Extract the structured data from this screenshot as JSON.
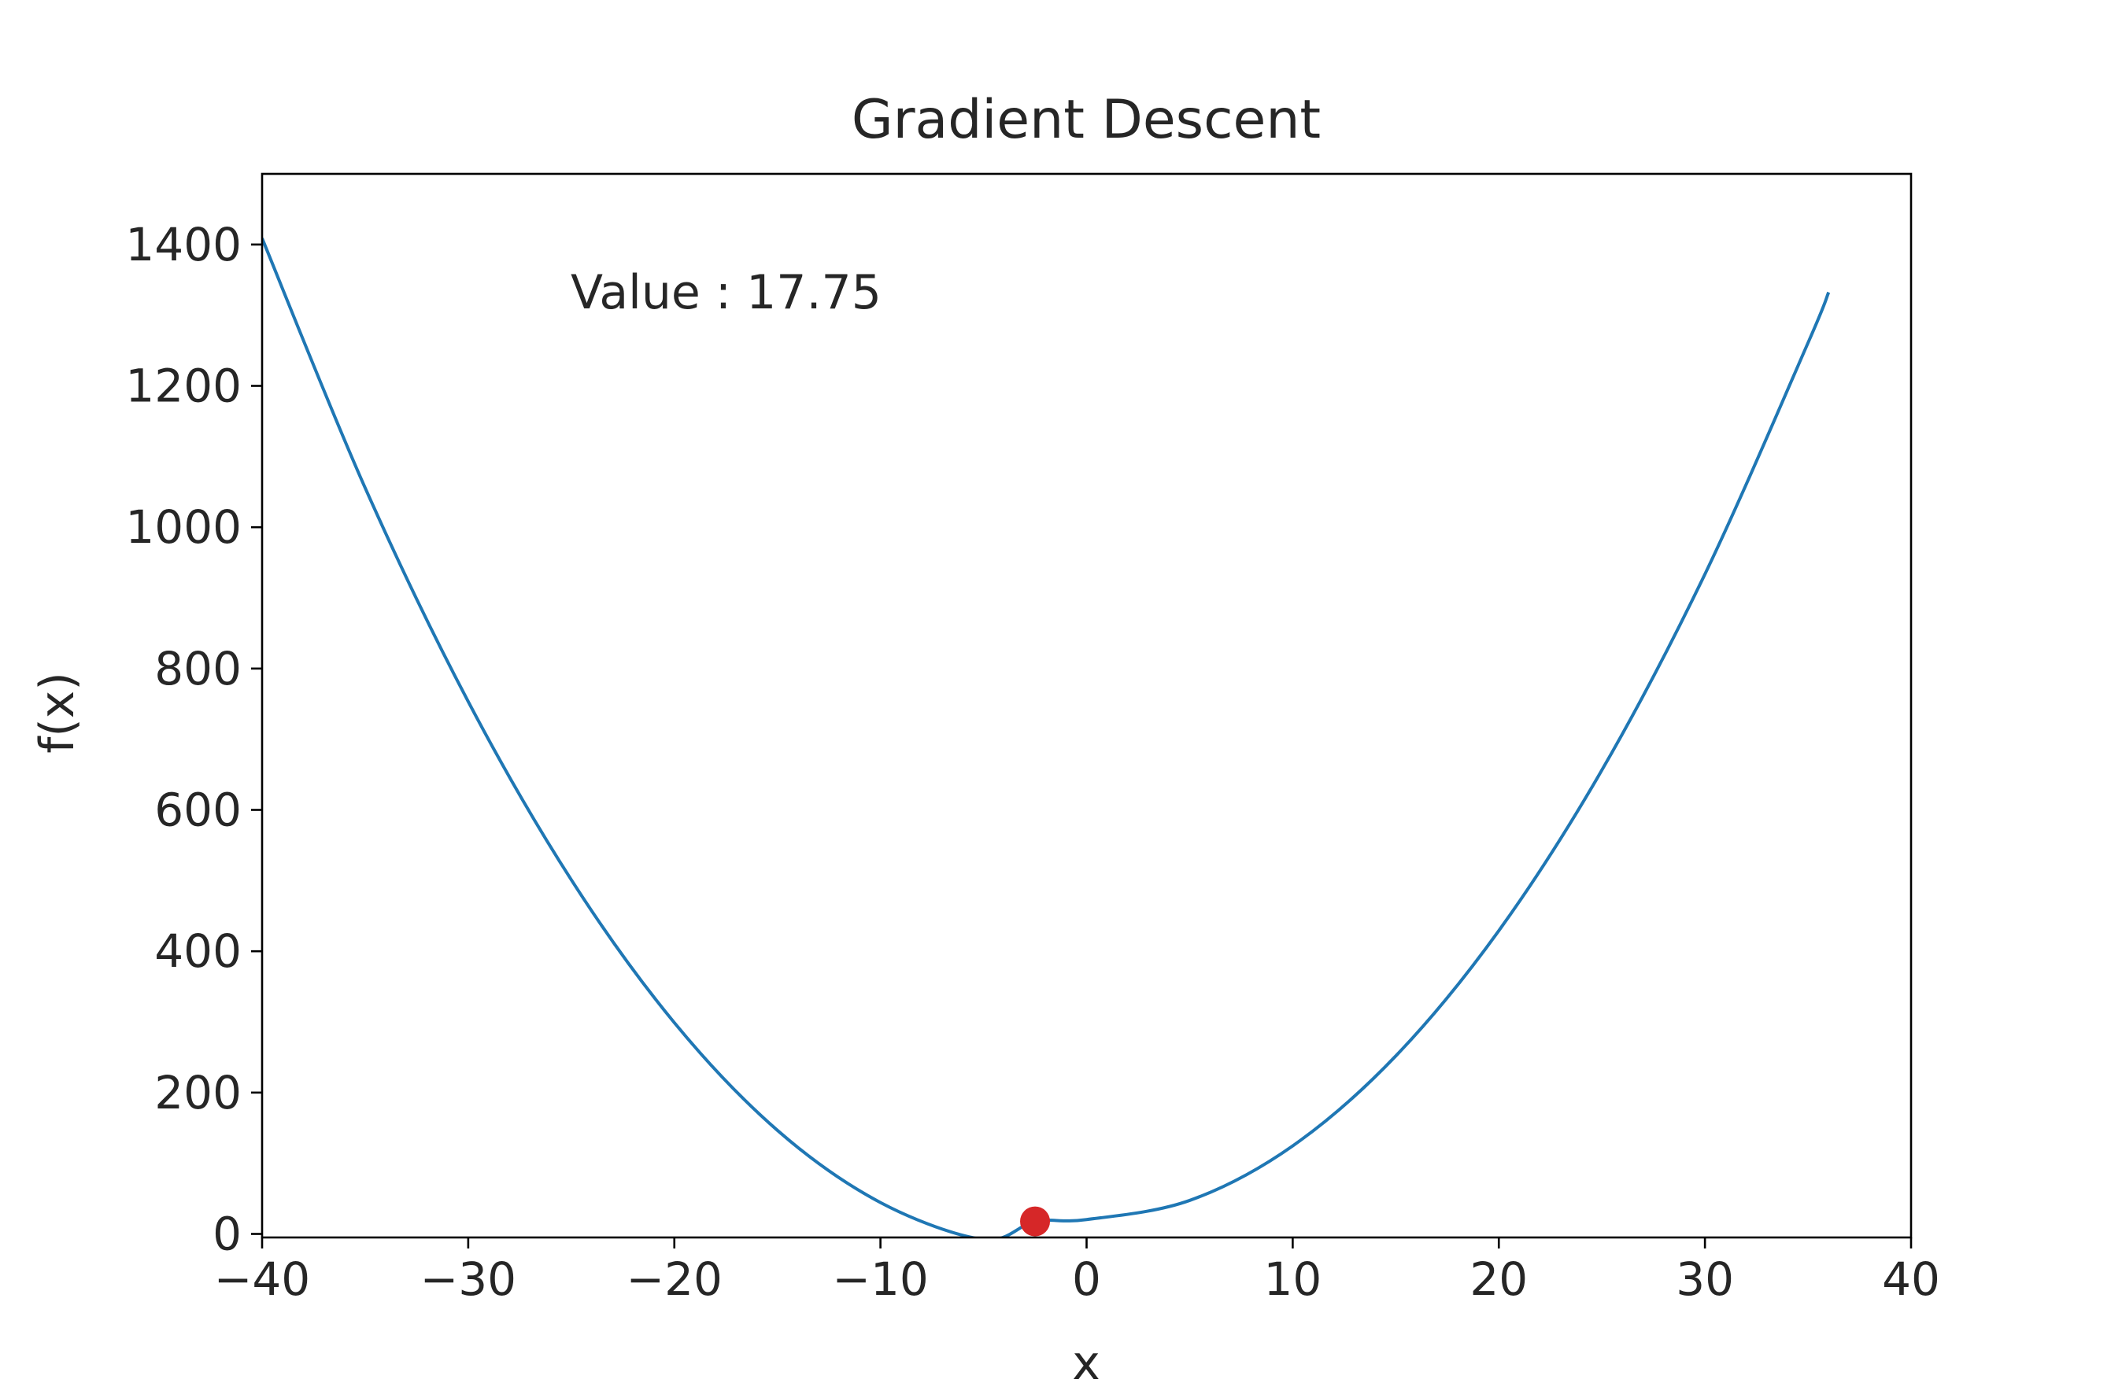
{
  "chart_data": {
    "type": "line",
    "title": "Gradient Descent",
    "xlabel": "x",
    "ylabel": "f(x)",
    "xlim": [
      -40,
      40
    ],
    "ylim": [
      -5,
      1500
    ],
    "xticks": [
      -40,
      -30,
      -20,
      -10,
      0,
      10,
      20,
      30,
      40
    ],
    "xtick_labels": [
      "−40",
      "−30",
      "−20",
      "−10",
      "0",
      "10",
      "20",
      "30",
      "40"
    ],
    "yticks": [
      0,
      200,
      400,
      600,
      800,
      1000,
      1200,
      1400
    ],
    "ytick_labels": [
      "0",
      "200",
      "400",
      "600",
      "800",
      "1000",
      "1200",
      "1400"
    ],
    "grid": false,
    "series": [
      {
        "color": "#1f77b4",
        "x": [
          -40,
          -35,
          -30,
          -25,
          -20,
          -15,
          -10,
          -5,
          -2.5,
          0,
          5,
          10,
          15,
          20,
          25,
          30,
          35,
          36
        ],
        "y": [
          1408.8,
          1055.6,
          753.3,
          501.1,
          298.9,
          146.6,
          44.4,
          -7.8,
          17.75,
          20.3,
          47.4,
          124.6,
          251.8,
          429.1,
          656.3,
          933.6,
          1260.8,
          1332.4
        ]
      }
    ],
    "current_point": {
      "x": -2.5,
      "y": 17.75,
      "color": "#d62728"
    },
    "annotation": "Value : 17.75"
  }
}
